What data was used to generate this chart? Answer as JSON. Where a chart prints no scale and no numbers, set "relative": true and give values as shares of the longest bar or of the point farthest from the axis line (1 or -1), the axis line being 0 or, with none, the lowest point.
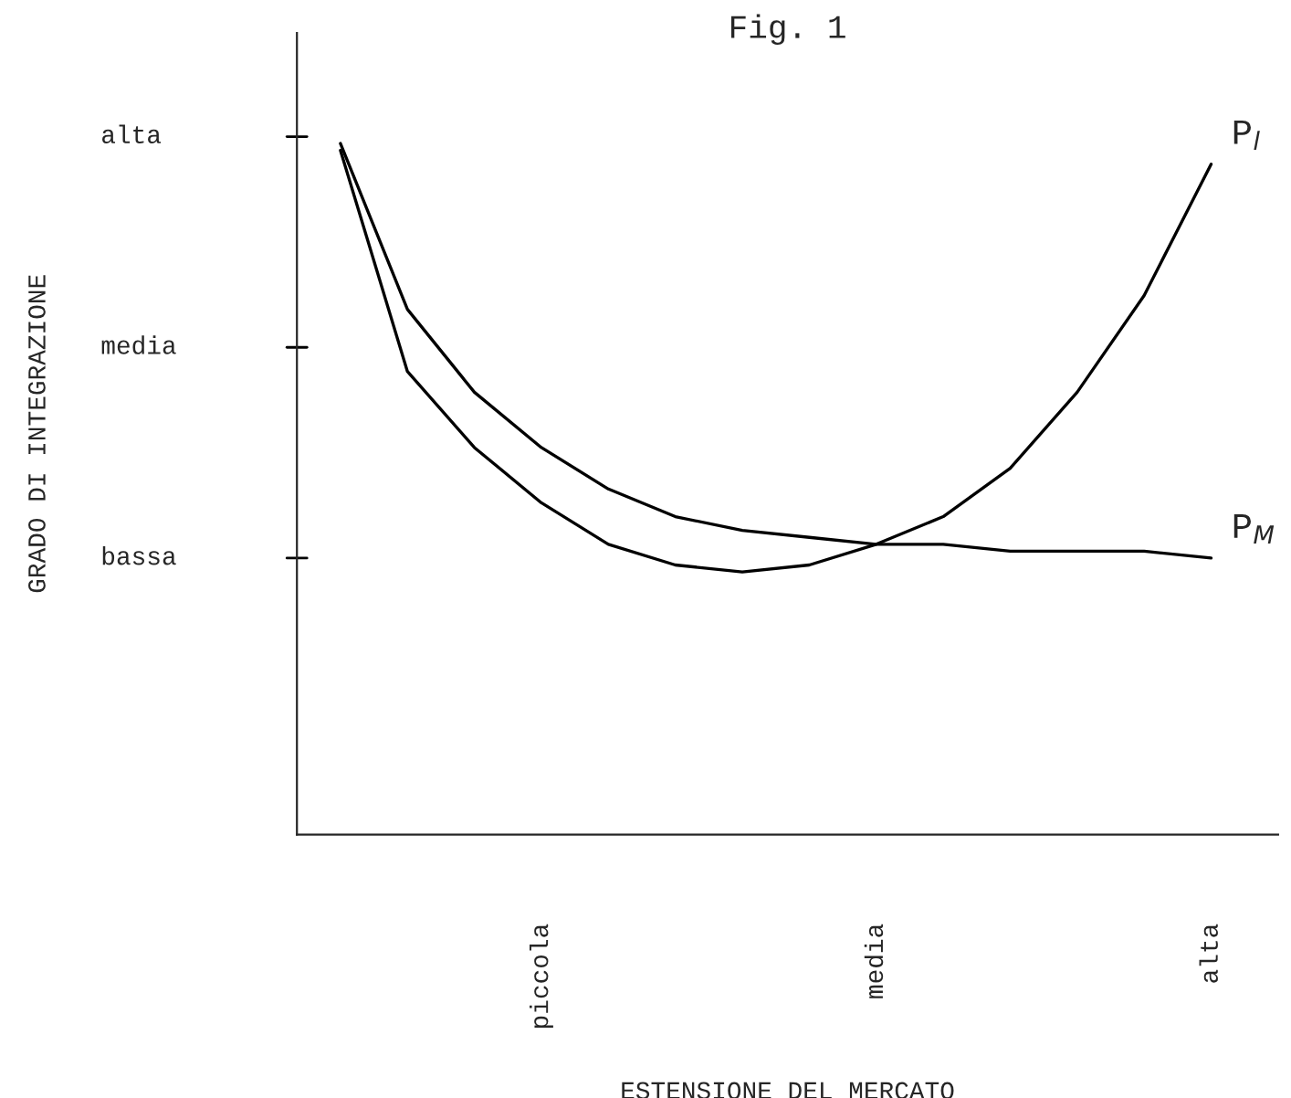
{
  "chart_data": {
    "type": "line",
    "relative": true,
    "title": "Fig. 1",
    "xlabel": "ESTENSIONE DEL MERCATO",
    "categories": [
      null,
      null,
      null,
      "piccola",
      null,
      null,
      null,
      null,
      "media",
      null,
      null,
      null,
      null,
      "alta"
    ],
    "annotations": [
      "GRADO DI INTEGRAZIONE",
      "bassa",
      "media",
      "alta"
    ],
    "grid": false,
    "legend": false,
    "marker": "none",
    "line_style": "solid",
    "series": [
      {
        "name": "P$_{l}$",
        "color": "#000000",
        "values": [
          0.99,
          0.67,
          0.56,
          0.48,
          0.42,
          0.39,
          0.38,
          0.39,
          0.42,
          0.46,
          0.53,
          0.64,
          0.78,
          0.97
        ]
      },
      {
        "name": "P$_{M}$",
        "color": "#000000",
        "values": [
          1,
          0.76,
          0.64,
          0.56,
          0.5,
          0.46,
          0.44,
          0.43,
          0.42,
          0.42,
          0.41,
          0.41,
          0.41,
          0.4
        ]
      }
    ]
  }
}
